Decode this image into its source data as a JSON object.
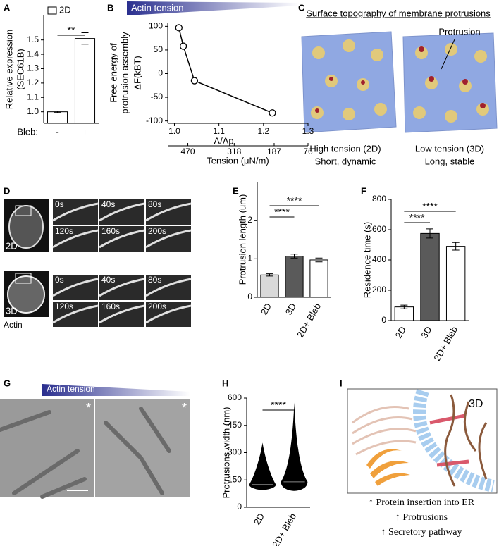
{
  "chart_data": [
    {
      "type": "bar",
      "panel": "A",
      "legend": "2D",
      "ylabel": [
        "Relative expression",
        "(SEC61B)"
      ],
      "xlabel": "Bleb:",
      "categories": [
        "-",
        "+"
      ],
      "values": [
        1.0,
        1.51
      ],
      "errors": [
        0.005,
        0.04
      ],
      "colors": [
        "#ffffff",
        "#ffffff"
      ],
      "annotations": [
        "**"
      ],
      "ylim": [
        0.92,
        1.67
      ],
      "yticks": [
        {
          "value": 1.0,
          "label": "1.0"
        },
        {
          "value": 1.1,
          "label": "1.1"
        },
        {
          "value": 1.2,
          "label": "1.2"
        },
        {
          "value": 1.3,
          "label": "1.3"
        },
        {
          "value": 1.4,
          "label": "1.4"
        },
        {
          "value": 1.5,
          "label": "1.5"
        }
      ]
    },
    {
      "type": "line",
      "panel": "B",
      "banner": "Actin tension",
      "ylabel": [
        "Free energy of",
        "protrusion assembly",
        "ΔF(kBT)"
      ],
      "xlabel": "A/Ap",
      "x": [
        1.01,
        1.02,
        1.045,
        1.22
      ],
      "values": [
        97,
        58,
        -15,
        -83
      ],
      "color": "#000000",
      "xlim": [
        0.985,
        1.3
      ],
      "xticks": [
        {
          "value": 1.0,
          "label": "1.0"
        },
        1.1,
        1.2,
        1.3
      ],
      "ylim": [
        -105,
        108
      ],
      "yticks": [
        -100,
        -50,
        0,
        50,
        100
      ],
      "x2lim": [
        536,
        76
      ],
      "x2ticks": [
        470,
        318,
        187,
        76
      ],
      "x2label": "Tension (μN/m)"
    },
    {
      "type": "bar",
      "panel": "E",
      "ylabel": [
        "Protrusion length (um)"
      ],
      "categories": [
        "2D",
        "3D",
        "2D+ Bleb"
      ],
      "values": [
        0.58,
        1.07,
        0.97
      ],
      "errors": [
        0.03,
        0.05,
        0.05
      ],
      "colors": [
        "#d9d9d9",
        "#5a5a5a",
        "#ffffff"
      ],
      "annotations": [
        "****",
        "****"
      ],
      "ylim": [
        0,
        3
      ],
      "yticks": [
        0,
        1,
        2
      ]
    },
    {
      "type": "bar",
      "panel": "F",
      "ylabel": [
        "Residence time (s)"
      ],
      "categories": [
        "2D",
        "3D",
        "2D+ Bleb"
      ],
      "values": [
        90,
        575,
        490
      ],
      "errors": [
        12,
        30,
        25
      ],
      "colors": [
        "#ffffff",
        "#5a5a5a",
        "#ffffff"
      ],
      "annotations": [
        "****",
        "****"
      ],
      "ylim": [
        0,
        800
      ],
      "yticks": [
        0,
        200,
        400,
        600,
        800
      ]
    },
    {
      "type": "swarm",
      "panel": "H",
      "ylabel": [
        "Protrusions width (nm)"
      ],
      "categories": [
        "2D",
        "2D+ Bleb"
      ],
      "values": [
        125,
        140
      ],
      "minima": [
        95,
        90
      ],
      "maxima": [
        355,
        575
      ],
      "color": "#000000",
      "annotations": [
        "****"
      ],
      "ylim": [
        0,
        600
      ],
      "yticks": [
        0,
        150,
        300,
        450,
        600
      ]
    }
  ],
  "panels": {
    "C": {
      "letter": "C",
      "title": "Surface topography of membrane protrusions",
      "callout": "Protrusion",
      "captions": [
        [
          "High tension (2D)",
          "Short, dynamic"
        ],
        [
          "Low tension (3D)",
          "Long, stable"
        ]
      ]
    },
    "D": {
      "letter": "D",
      "times": [
        "0s",
        "40s",
        "80s",
        "120s",
        "160s",
        "200s"
      ],
      "rows": [
        "2D",
        "3D"
      ],
      "stain": "Actin"
    },
    "G": {
      "letter": "G",
      "banner": "Actin tension",
      "marks": [
        "*",
        "*"
      ]
    },
    "I": {
      "letter": "I",
      "label": "3D",
      "lines": [
        "↑ Protein insertion into ER",
        "↑ Protrusions",
        "↑ Secretory pathway"
      ]
    }
  }
}
